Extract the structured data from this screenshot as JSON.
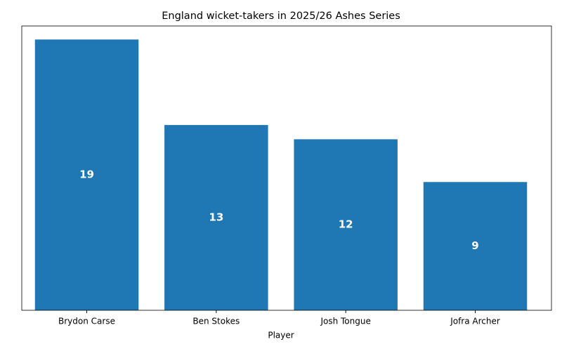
{
  "chart_data": {
    "type": "bar",
    "title": "England wicket-takers in 2025/26 Ashes Series",
    "x_label": "Player",
    "categories": [
      "Brydon Carse",
      "Ben Stokes",
      "Josh Tongue",
      "Jofra Archer"
    ],
    "values": [
      19,
      13,
      12,
      9
    ],
    "color": "#1f77b4",
    "ylim": [
      0,
      19.95
    ],
    "grid": false
  }
}
